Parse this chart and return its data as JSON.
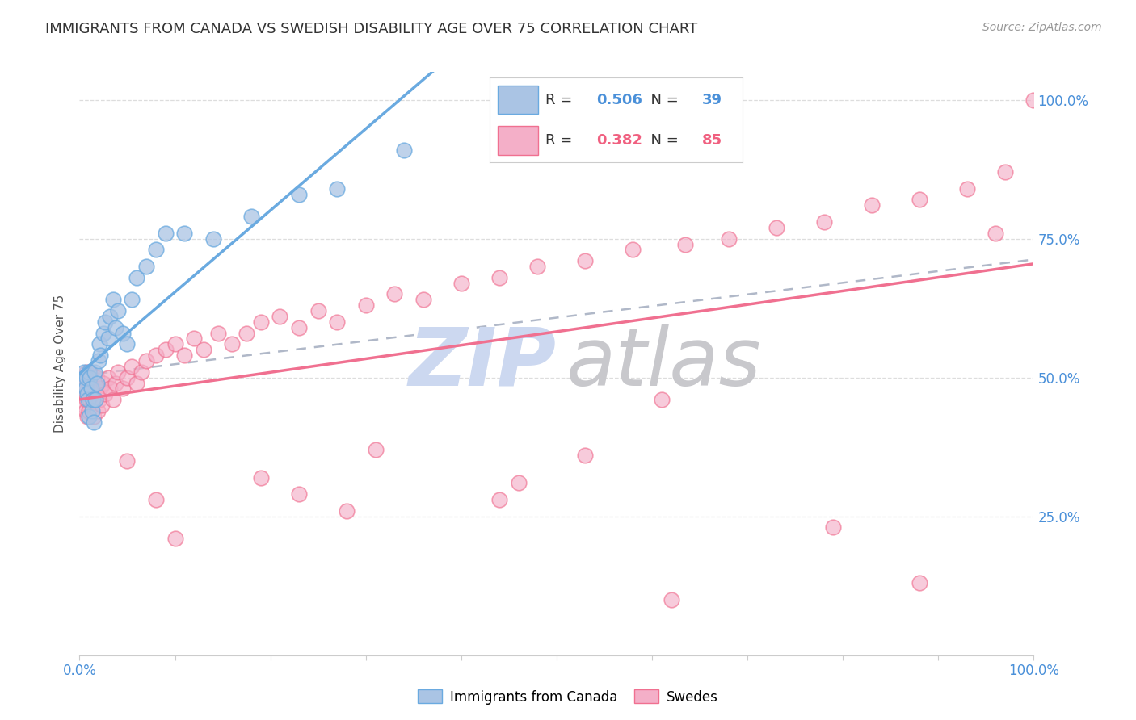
{
  "title": "IMMIGRANTS FROM CANADA VS SWEDISH DISABILITY AGE OVER 75 CORRELATION CHART",
  "source": "Source: ZipAtlas.com",
  "ylabel": "Disability Age Over 75",
  "legend_label1": "Immigrants from Canada",
  "legend_label2": "Swedes",
  "r1": 0.506,
  "n1": 39,
  "r2": 0.382,
  "n2": 85,
  "color_blue": "#aac4e4",
  "color_pink": "#f4afc8",
  "color_blue_text": "#4a90d9",
  "color_pink_text": "#f06080",
  "line_blue": "#6aaae0",
  "line_pink": "#f07090",
  "watermark_zip_color": "#ccd8f0",
  "watermark_atlas_color": "#c8c8cc",
  "bg_color": "#ffffff",
  "grid_color": "#dddddd",
  "title_color": "#333333",
  "source_color": "#999999",
  "ylabel_color": "#555555",
  "tick_color": "#4a90d9",
  "blue_x": [
    0.004,
    0.005,
    0.006,
    0.007,
    0.008,
    0.009,
    0.01,
    0.01,
    0.011,
    0.012,
    0.013,
    0.014,
    0.015,
    0.016,
    0.017,
    0.018,
    0.02,
    0.021,
    0.022,
    0.025,
    0.027,
    0.03,
    0.032,
    0.035,
    0.038,
    0.04,
    0.045,
    0.05,
    0.055,
    0.06,
    0.07,
    0.08,
    0.09,
    0.11,
    0.14,
    0.18,
    0.23,
    0.27,
    0.34
  ],
  "blue_y": [
    0.49,
    0.51,
    0.48,
    0.5,
    0.47,
    0.46,
    0.51,
    0.43,
    0.5,
    0.48,
    0.44,
    0.46,
    0.42,
    0.51,
    0.46,
    0.49,
    0.53,
    0.56,
    0.54,
    0.58,
    0.6,
    0.57,
    0.61,
    0.64,
    0.59,
    0.62,
    0.58,
    0.56,
    0.64,
    0.68,
    0.7,
    0.73,
    0.76,
    0.76,
    0.75,
    0.79,
    0.83,
    0.84,
    0.91
  ],
  "pink_x": [
    0.003,
    0.004,
    0.005,
    0.006,
    0.006,
    0.007,
    0.007,
    0.008,
    0.008,
    0.009,
    0.01,
    0.01,
    0.011,
    0.011,
    0.012,
    0.013,
    0.014,
    0.015,
    0.016,
    0.017,
    0.018,
    0.019,
    0.02,
    0.021,
    0.022,
    0.023,
    0.025,
    0.027,
    0.03,
    0.032,
    0.035,
    0.038,
    0.04,
    0.045,
    0.05,
    0.055,
    0.06,
    0.065,
    0.07,
    0.08,
    0.09,
    0.1,
    0.11,
    0.12,
    0.13,
    0.145,
    0.16,
    0.175,
    0.19,
    0.21,
    0.23,
    0.25,
    0.27,
    0.3,
    0.33,
    0.36,
    0.4,
    0.44,
    0.48,
    0.53,
    0.58,
    0.635,
    0.68,
    0.73,
    0.78,
    0.83,
    0.88,
    0.93,
    0.97,
    0.05,
    0.08,
    0.19,
    0.23,
    0.31,
    0.44,
    0.53,
    0.61,
    0.1,
    0.28,
    0.46,
    0.62,
    0.79,
    0.88,
    0.96,
    1.0
  ],
  "pink_y": [
    0.48,
    0.45,
    0.5,
    0.47,
    0.44,
    0.46,
    0.51,
    0.48,
    0.43,
    0.47,
    0.5,
    0.44,
    0.46,
    0.51,
    0.48,
    0.45,
    0.47,
    0.43,
    0.46,
    0.48,
    0.5,
    0.44,
    0.47,
    0.46,
    0.48,
    0.45,
    0.49,
    0.47,
    0.5,
    0.48,
    0.46,
    0.49,
    0.51,
    0.48,
    0.5,
    0.52,
    0.49,
    0.51,
    0.53,
    0.54,
    0.55,
    0.56,
    0.54,
    0.57,
    0.55,
    0.58,
    0.56,
    0.58,
    0.6,
    0.61,
    0.59,
    0.62,
    0.6,
    0.63,
    0.65,
    0.64,
    0.67,
    0.68,
    0.7,
    0.71,
    0.73,
    0.74,
    0.75,
    0.77,
    0.78,
    0.81,
    0.82,
    0.84,
    0.87,
    0.35,
    0.28,
    0.32,
    0.29,
    0.37,
    0.28,
    0.36,
    0.46,
    0.21,
    0.26,
    0.31,
    0.1,
    0.23,
    0.13,
    0.76,
    1.0
  ]
}
